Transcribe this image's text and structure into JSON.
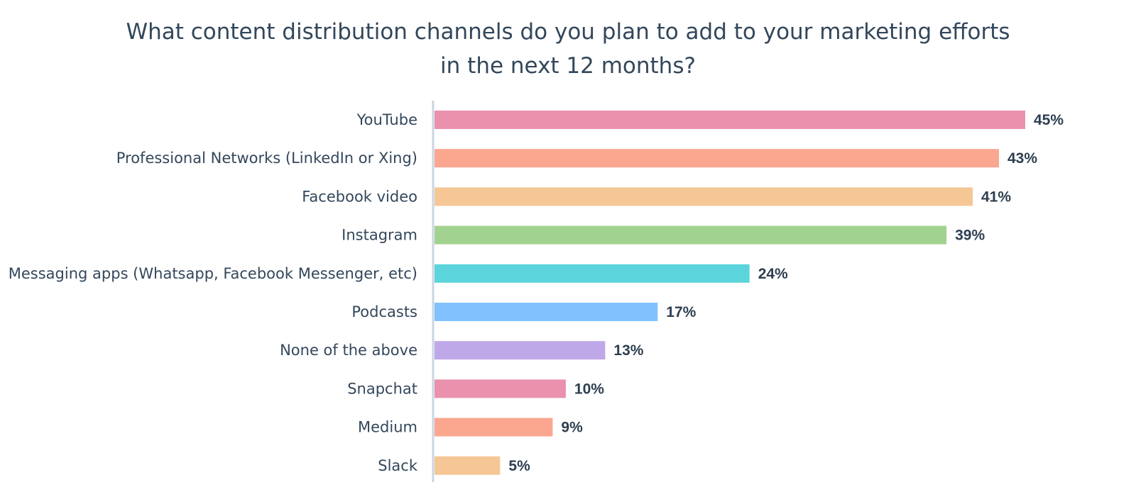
{
  "chart_data": {
    "type": "bar",
    "orientation": "horizontal",
    "title_lines": [
      "What content distribution channels do you plan to add to your marketing efforts",
      "in the next 12 months?"
    ],
    "categories": [
      "YouTube",
      "Professional Networks (LinkedIn or Xing)",
      "Facebook video",
      "Instagram",
      "Messaging apps (Whatsapp, Facebook Messenger, etc)",
      "Podcasts",
      "None of the above",
      "Snapchat",
      "Medium",
      "Slack"
    ],
    "values": [
      45,
      43,
      41,
      39,
      24,
      17,
      13,
      10,
      9,
      5
    ],
    "value_labels": [
      "45%",
      "43%",
      "41%",
      "39%",
      "24%",
      "17%",
      "13%",
      "10%",
      "9%",
      "5%"
    ],
    "bar_colors": [
      "#e991ad",
      "#fba68f",
      "#f5c795",
      "#a2d28f",
      "#5bd5db",
      "#81c1fd",
      "#bfa8e7",
      "#e991ad",
      "#fba68f",
      "#f5c795"
    ],
    "axis_line_color": "#cbd6e2",
    "xlim": [
      0,
      45
    ],
    "grid": false,
    "legend": "none",
    "xlabel": "",
    "ylabel": ""
  }
}
